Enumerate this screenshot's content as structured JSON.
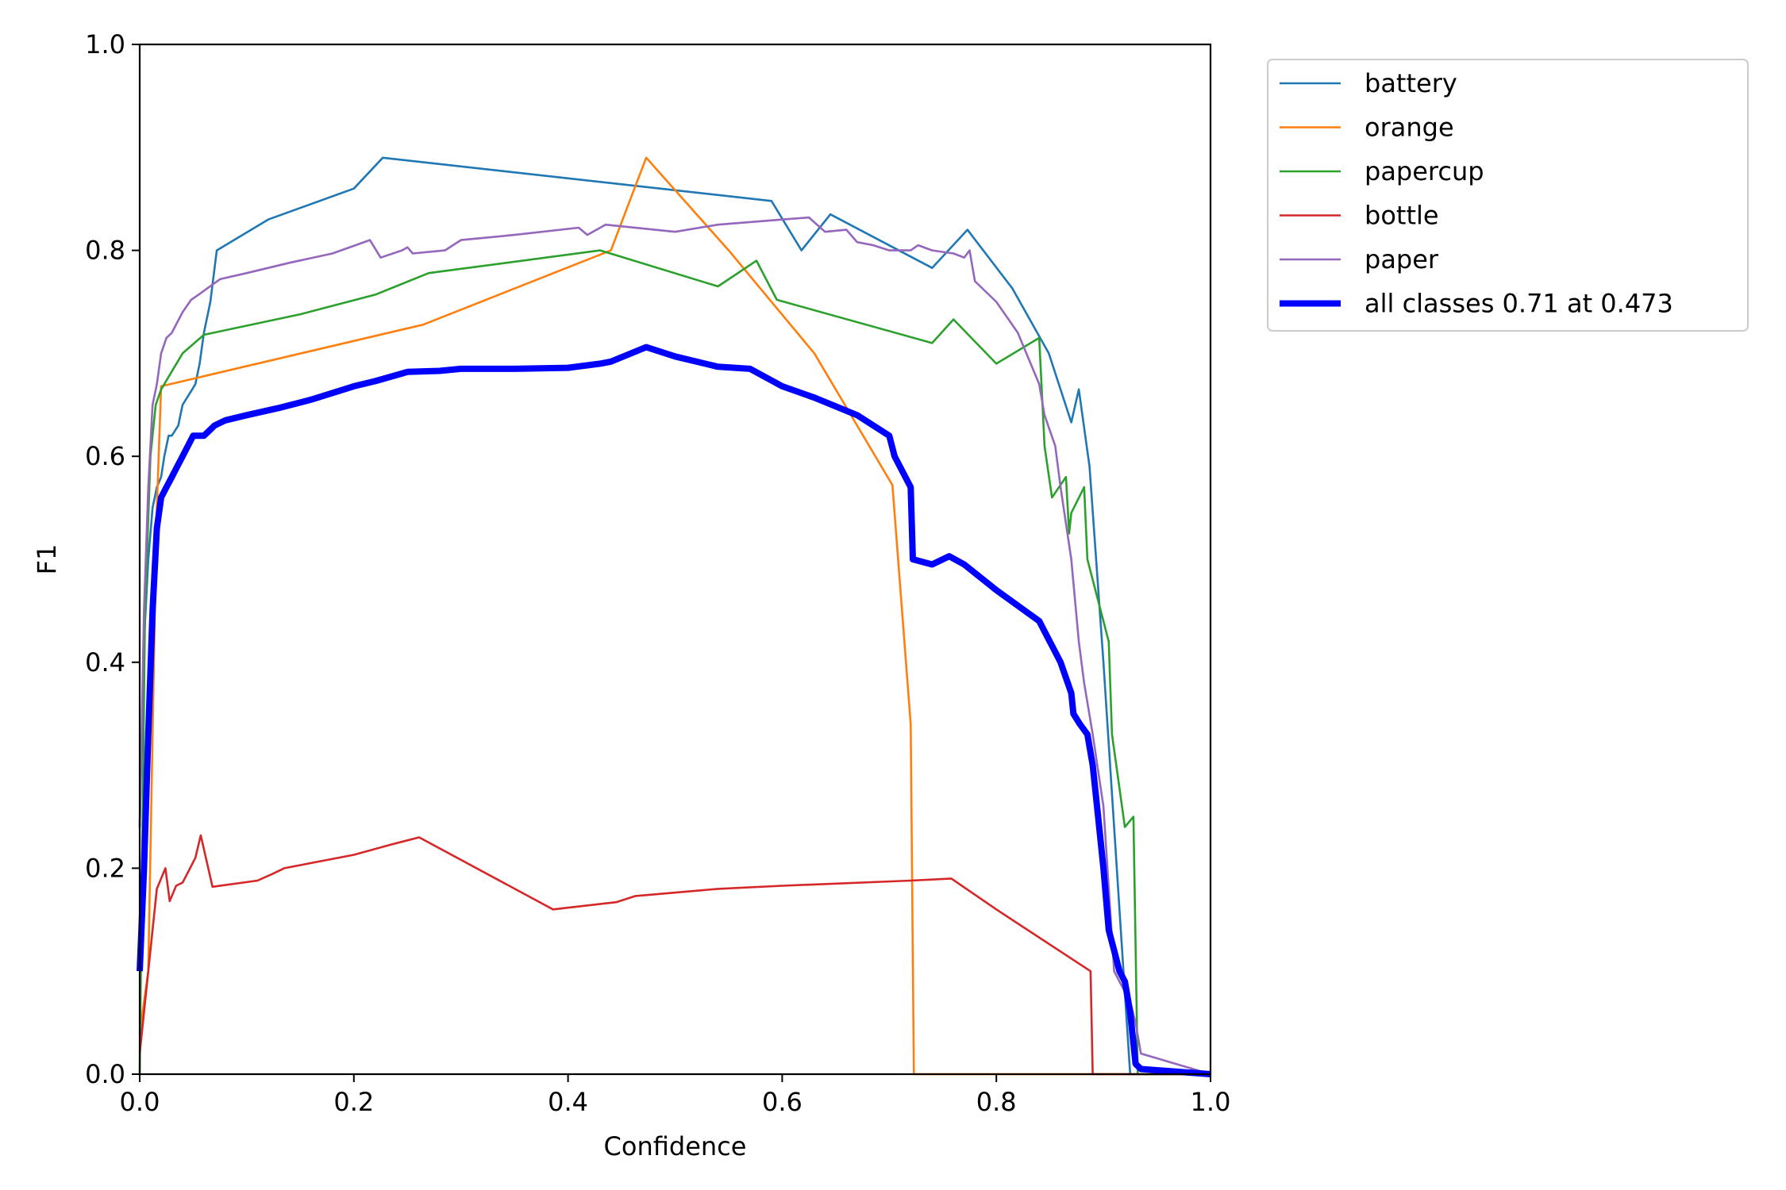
{
  "chart_data": {
    "type": "line",
    "title": "",
    "xlabel": "Confidence",
    "ylabel": "F1",
    "xlim": [
      0,
      1
    ],
    "ylim": [
      0,
      1
    ],
    "xticks": [
      "0.0",
      "0.2",
      "0.4",
      "0.6",
      "0.8",
      "1.0"
    ],
    "yticks": [
      "0.0",
      "0.2",
      "0.4",
      "0.6",
      "0.8",
      "1.0"
    ],
    "grid": false,
    "legend_position": "outside-top-right",
    "series": [
      {
        "name": "battery",
        "color": "#1f77b4",
        "width": "thin",
        "x": [
          0.0,
          0.004,
          0.008,
          0.012,
          0.016,
          0.02,
          0.023,
          0.027,
          0.03,
          0.036,
          0.04,
          0.046,
          0.052,
          0.056,
          0.06,
          0.066,
          0.072,
          0.12,
          0.2,
          0.227,
          0.59,
          0.618,
          0.645,
          0.74,
          0.773,
          0.815,
          0.849,
          0.87,
          0.877,
          0.887,
          0.9,
          0.915,
          0.925,
          0.93,
          1.0
        ],
        "y": [
          0.24,
          0.42,
          0.5,
          0.55,
          0.57,
          0.58,
          0.6,
          0.62,
          0.62,
          0.63,
          0.65,
          0.66,
          0.67,
          0.69,
          0.72,
          0.75,
          0.8,
          0.83,
          0.86,
          0.89,
          0.848,
          0.8,
          0.835,
          0.783,
          0.82,
          0.763,
          0.7,
          0.633,
          0.665,
          0.59,
          0.4,
          0.16,
          0.0,
          0.0,
          0.0
        ]
      },
      {
        "name": "orange",
        "color": "#ff7f0e",
        "width": "thin",
        "x": [
          0.0,
          0.008,
          0.012,
          0.016,
          0.02,
          0.265,
          0.44,
          0.473,
          0.55,
          0.63,
          0.703,
          0.72,
          0.723,
          1.0
        ],
        "y": [
          0.04,
          0.1,
          0.33,
          0.55,
          0.668,
          0.728,
          0.8,
          0.89,
          0.8,
          0.7,
          0.572,
          0.34,
          0.0,
          0.0
        ]
      },
      {
        "name": "papercup",
        "color": "#2ca02c",
        "width": "thin",
        "x": [
          0.0,
          0.005,
          0.01,
          0.015,
          0.02,
          0.04,
          0.06,
          0.15,
          0.22,
          0.27,
          0.43,
          0.54,
          0.576,
          0.595,
          0.74,
          0.76,
          0.8,
          0.84,
          0.845,
          0.852,
          0.865,
          0.868,
          0.87,
          0.882,
          0.885,
          0.9,
          0.905,
          0.908,
          0.92,
          0.928,
          0.932,
          1.0
        ],
        "y": [
          0.0,
          0.45,
          0.6,
          0.65,
          0.665,
          0.7,
          0.718,
          0.738,
          0.757,
          0.778,
          0.8,
          0.765,
          0.79,
          0.752,
          0.71,
          0.733,
          0.69,
          0.715,
          0.61,
          0.56,
          0.58,
          0.525,
          0.545,
          0.57,
          0.5,
          0.44,
          0.42,
          0.33,
          0.24,
          0.25,
          0.0,
          0.0
        ]
      },
      {
        "name": "bottle",
        "color": "#d62728",
        "width": "thin",
        "x": [
          0.0,
          0.004,
          0.008,
          0.012,
          0.016,
          0.024,
          0.028,
          0.034,
          0.04,
          0.046,
          0.052,
          0.057,
          0.068,
          0.11,
          0.125,
          0.135,
          0.2,
          0.235,
          0.261,
          0.386,
          0.445,
          0.463,
          0.54,
          0.6,
          0.72,
          0.758,
          0.8,
          0.888,
          0.89,
          1.0
        ],
        "y": [
          0.02,
          0.06,
          0.1,
          0.14,
          0.18,
          0.2,
          0.168,
          0.183,
          0.186,
          0.198,
          0.21,
          0.232,
          0.182,
          0.188,
          0.195,
          0.2,
          0.213,
          0.223,
          0.23,
          0.16,
          0.167,
          0.173,
          0.18,
          0.183,
          0.188,
          0.19,
          0.16,
          0.1,
          0.0,
          0.0
        ]
      },
      {
        "name": "paper",
        "color": "#9467bd",
        "width": "thin",
        "x": [
          0.0,
          0.004,
          0.008,
          0.012,
          0.016,
          0.02,
          0.025,
          0.03,
          0.04,
          0.048,
          0.055,
          0.075,
          0.1,
          0.14,
          0.18,
          0.215,
          0.225,
          0.245,
          0.25,
          0.255,
          0.285,
          0.3,
          0.35,
          0.41,
          0.418,
          0.435,
          0.5,
          0.54,
          0.6,
          0.625,
          0.64,
          0.66,
          0.67,
          0.685,
          0.7,
          0.72,
          0.727,
          0.74,
          0.76,
          0.77,
          0.775,
          0.78,
          0.8,
          0.82,
          0.84,
          0.845,
          0.855,
          0.86,
          0.87,
          0.877,
          0.882,
          0.89,
          0.9,
          0.91,
          0.925,
          0.93,
          0.935,
          1.0
        ],
        "y": [
          0.24,
          0.45,
          0.57,
          0.65,
          0.67,
          0.7,
          0.715,
          0.72,
          0.74,
          0.752,
          0.757,
          0.772,
          0.778,
          0.788,
          0.797,
          0.81,
          0.793,
          0.8,
          0.803,
          0.797,
          0.8,
          0.81,
          0.815,
          0.822,
          0.815,
          0.825,
          0.818,
          0.825,
          0.83,
          0.832,
          0.818,
          0.82,
          0.808,
          0.805,
          0.8,
          0.8,
          0.805,
          0.8,
          0.797,
          0.793,
          0.8,
          0.77,
          0.75,
          0.72,
          0.67,
          0.64,
          0.61,
          0.57,
          0.5,
          0.42,
          0.38,
          0.33,
          0.26,
          0.1,
          0.07,
          0.05,
          0.02,
          0.0
        ]
      },
      {
        "name": "all classes 0.71 at 0.473",
        "color": "#0000ff",
        "width": "thick",
        "x": [
          0.0,
          0.004,
          0.008,
          0.012,
          0.016,
          0.02,
          0.025,
          0.03,
          0.035,
          0.04,
          0.045,
          0.05,
          0.055,
          0.06,
          0.065,
          0.07,
          0.08,
          0.1,
          0.13,
          0.16,
          0.2,
          0.22,
          0.25,
          0.28,
          0.3,
          0.35,
          0.4,
          0.43,
          0.44,
          0.473,
          0.5,
          0.54,
          0.57,
          0.6,
          0.63,
          0.67,
          0.7,
          0.705,
          0.72,
          0.722,
          0.74,
          0.756,
          0.77,
          0.8,
          0.82,
          0.84,
          0.85,
          0.855,
          0.86,
          0.87,
          0.872,
          0.878,
          0.885,
          0.89,
          0.895,
          0.9,
          0.905,
          0.91,
          0.915,
          0.92,
          0.925,
          0.93,
          0.935,
          1.0
        ],
        "y": [
          0.1,
          0.2,
          0.33,
          0.45,
          0.53,
          0.56,
          0.57,
          0.58,
          0.59,
          0.6,
          0.61,
          0.62,
          0.62,
          0.62,
          0.625,
          0.63,
          0.635,
          0.64,
          0.647,
          0.655,
          0.668,
          0.673,
          0.682,
          0.683,
          0.685,
          0.685,
          0.686,
          0.69,
          0.692,
          0.706,
          0.697,
          0.687,
          0.685,
          0.668,
          0.657,
          0.64,
          0.62,
          0.6,
          0.57,
          0.5,
          0.495,
          0.503,
          0.495,
          0.47,
          0.455,
          0.44,
          0.42,
          0.41,
          0.4,
          0.37,
          0.35,
          0.34,
          0.33,
          0.3,
          0.25,
          0.2,
          0.14,
          0.12,
          0.1,
          0.09,
          0.06,
          0.01,
          0.005,
          0.0
        ]
      }
    ]
  }
}
